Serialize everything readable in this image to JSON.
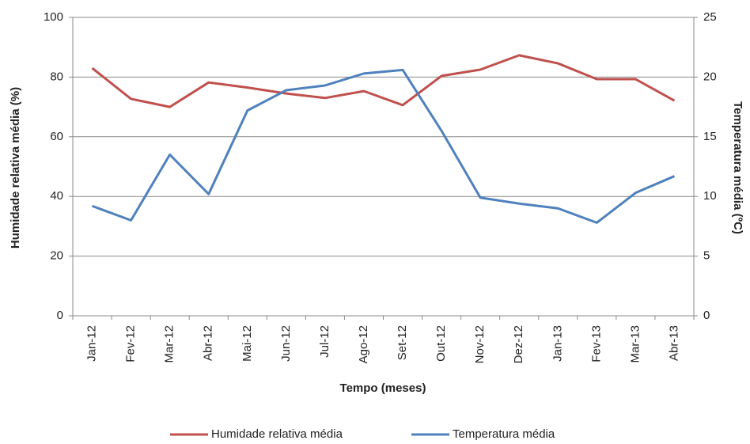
{
  "chart_data": {
    "type": "line",
    "x_label": "Tempo (meses)",
    "y_label": "Humidade relativa média (%)",
    "y2_label": "Temperatura média (ºC)",
    "categories": [
      "Jan-12",
      "Fev-12",
      "Mar-12",
      "Abr-12",
      "Mai-12",
      "Jun-12",
      "Jul-12",
      "Ago-12",
      "Set-12",
      "Out-12",
      "Nov-12",
      "Dez-12",
      "Jan-13",
      "Fev-13",
      "Mar-13",
      "Abr-13"
    ],
    "series": [
      {
        "name": "Humidade relativa média",
        "color": "#c0504d",
        "values": [
          83,
          72.7,
          70,
          78.2,
          76.5,
          74.5,
          73,
          75.3,
          70.6,
          80.4,
          82.5,
          87.3,
          84.6,
          79.3,
          79.3,
          72.1
        ]
      },
      {
        "name": "Temperatura média",
        "color": "#4f81bd",
        "axis": "y2",
        "values": [
          9.2,
          8.0,
          13.5,
          10.2,
          17.2,
          18.9,
          19.3,
          20.3,
          20.6,
          15.5,
          9.9,
          9.4,
          9.0,
          7.8,
          10.3,
          11.7
        ]
      }
    ],
    "ylim": [
      0,
      100
    ],
    "yticks": [
      0,
      20,
      40,
      60,
      80,
      100
    ],
    "y2lim": [
      0,
      25
    ],
    "y2ticks": [
      0,
      5,
      10,
      15,
      20,
      25
    ],
    "grid": true,
    "legend": "bottom"
  }
}
